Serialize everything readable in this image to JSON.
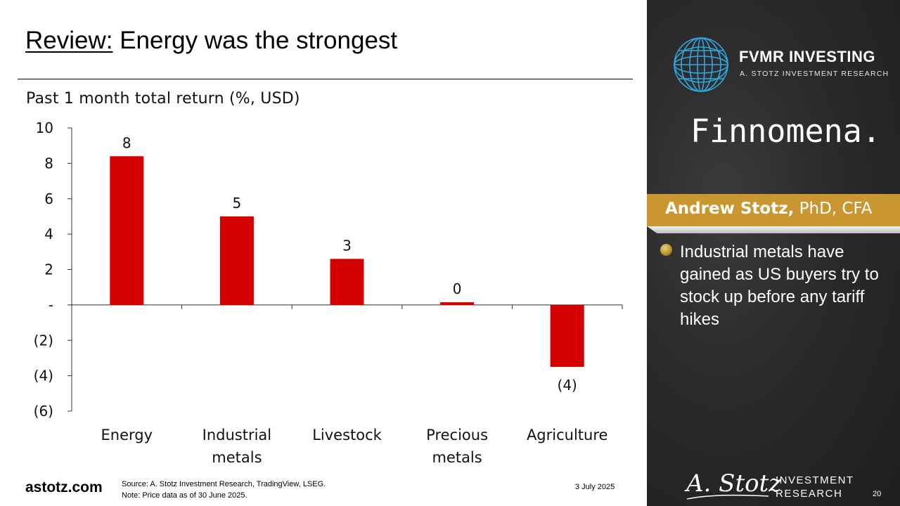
{
  "slide": {
    "title_prefix": "Review:",
    "title_rest": " Energy was the strongest",
    "page_number": "20",
    "date": "3 July 2025"
  },
  "footer": {
    "site": "astotz.com",
    "source": "Source: A. Stotz Investment Research, TradingView, LSEG.",
    "note": "Note: Price data as of 30 June 2025."
  },
  "sidebar": {
    "brand": "FVMR INVESTING",
    "brand_sub": "A. STOTZ INVESTMENT RESEARCH",
    "partner": "Finnomena.",
    "presenter_name": "Andrew Stotz,",
    "presenter_credentials": " PhD, CFA",
    "bullet": "Industrial metals have gained as US buyers try to stock up before any tariff hikes",
    "signature": "A. Stotz",
    "ir_line1": "INVESTMENT",
    "ir_line2": "RESEARCH"
  },
  "colors": {
    "bar": "#d40000",
    "accent_gold": "#c9962f",
    "panel_dark": "#2a2a2a",
    "globe_blue": "#2fa8e0"
  },
  "chart_data": {
    "type": "bar",
    "title": "Past 1 month total return (%, USD)",
    "categories": [
      [
        "Energy"
      ],
      [
        "Industrial",
        "metals"
      ],
      [
        "Livestock"
      ],
      [
        "Precious",
        "metals"
      ],
      [
        "Agriculture"
      ]
    ],
    "values": [
      8.4,
      5.0,
      2.6,
      0.15,
      -3.5
    ],
    "data_labels": [
      "8",
      "5",
      "3",
      "0",
      "(4)"
    ],
    "ylim": [
      -6,
      10
    ],
    "yticks": [
      10,
      8,
      6,
      4,
      2,
      0,
      -2,
      -4,
      -6
    ],
    "ytick_labels": [
      "10",
      "8",
      "6",
      "4",
      "2",
      "-",
      "(2)",
      "(4)",
      "(6)"
    ],
    "grid": false,
    "legend": "none"
  }
}
